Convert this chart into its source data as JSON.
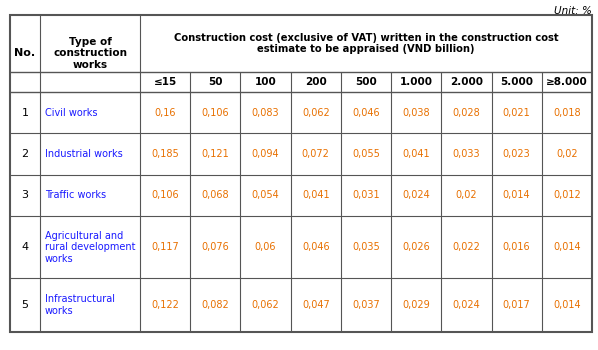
{
  "unit_label": "Unit: %",
  "header_col1": "No.",
  "header_col2": "Type of\nconstruction\nworks",
  "header_col3": "Construction cost (exclusive of VAT) written in the construction cost\nestimate to be appraised (VND billion)",
  "cost_columns": [
    "≤15",
    "50",
    "100",
    "200",
    "500",
    "1.000",
    "2.000",
    "5.000",
    "≥8.000"
  ],
  "rows": [
    {
      "no": "1",
      "type": "Civil works",
      "values": [
        "0,16",
        "0,106",
        "0,083",
        "0,062",
        "0,046",
        "0,038",
        "0,028",
        "0,021",
        "0,018"
      ]
    },
    {
      "no": "2",
      "type": "Industrial works",
      "values": [
        "0,185",
        "0,121",
        "0,094",
        "0,072",
        "0,055",
        "0,041",
        "0,033",
        "0,023",
        "0,02"
      ]
    },
    {
      "no": "3",
      "type": "Traffic works",
      "values": [
        "0,106",
        "0,068",
        "0,054",
        "0,041",
        "0,031",
        "0,024",
        "0,02",
        "0,014",
        "0,012"
      ]
    },
    {
      "no": "4",
      "type": "Agricultural and\nrural development\nworks",
      "values": [
        "0,117",
        "0,076",
        "0,06",
        "0,046",
        "0,035",
        "0,026",
        "0,022",
        "0,016",
        "0,014"
      ]
    },
    {
      "no": "5",
      "type": "Infrastructural\nworks",
      "values": [
        "0,122",
        "0,082",
        "0,062",
        "0,047",
        "0,037",
        "0,029",
        "0,024",
        "0,017",
        "0,014"
      ]
    }
  ],
  "text_color": "#000000",
  "data_color": "#e87000",
  "header_color": "#1a1aff",
  "border_color": "#555555",
  "font_size": 7.0,
  "header_font_size": 7.5
}
